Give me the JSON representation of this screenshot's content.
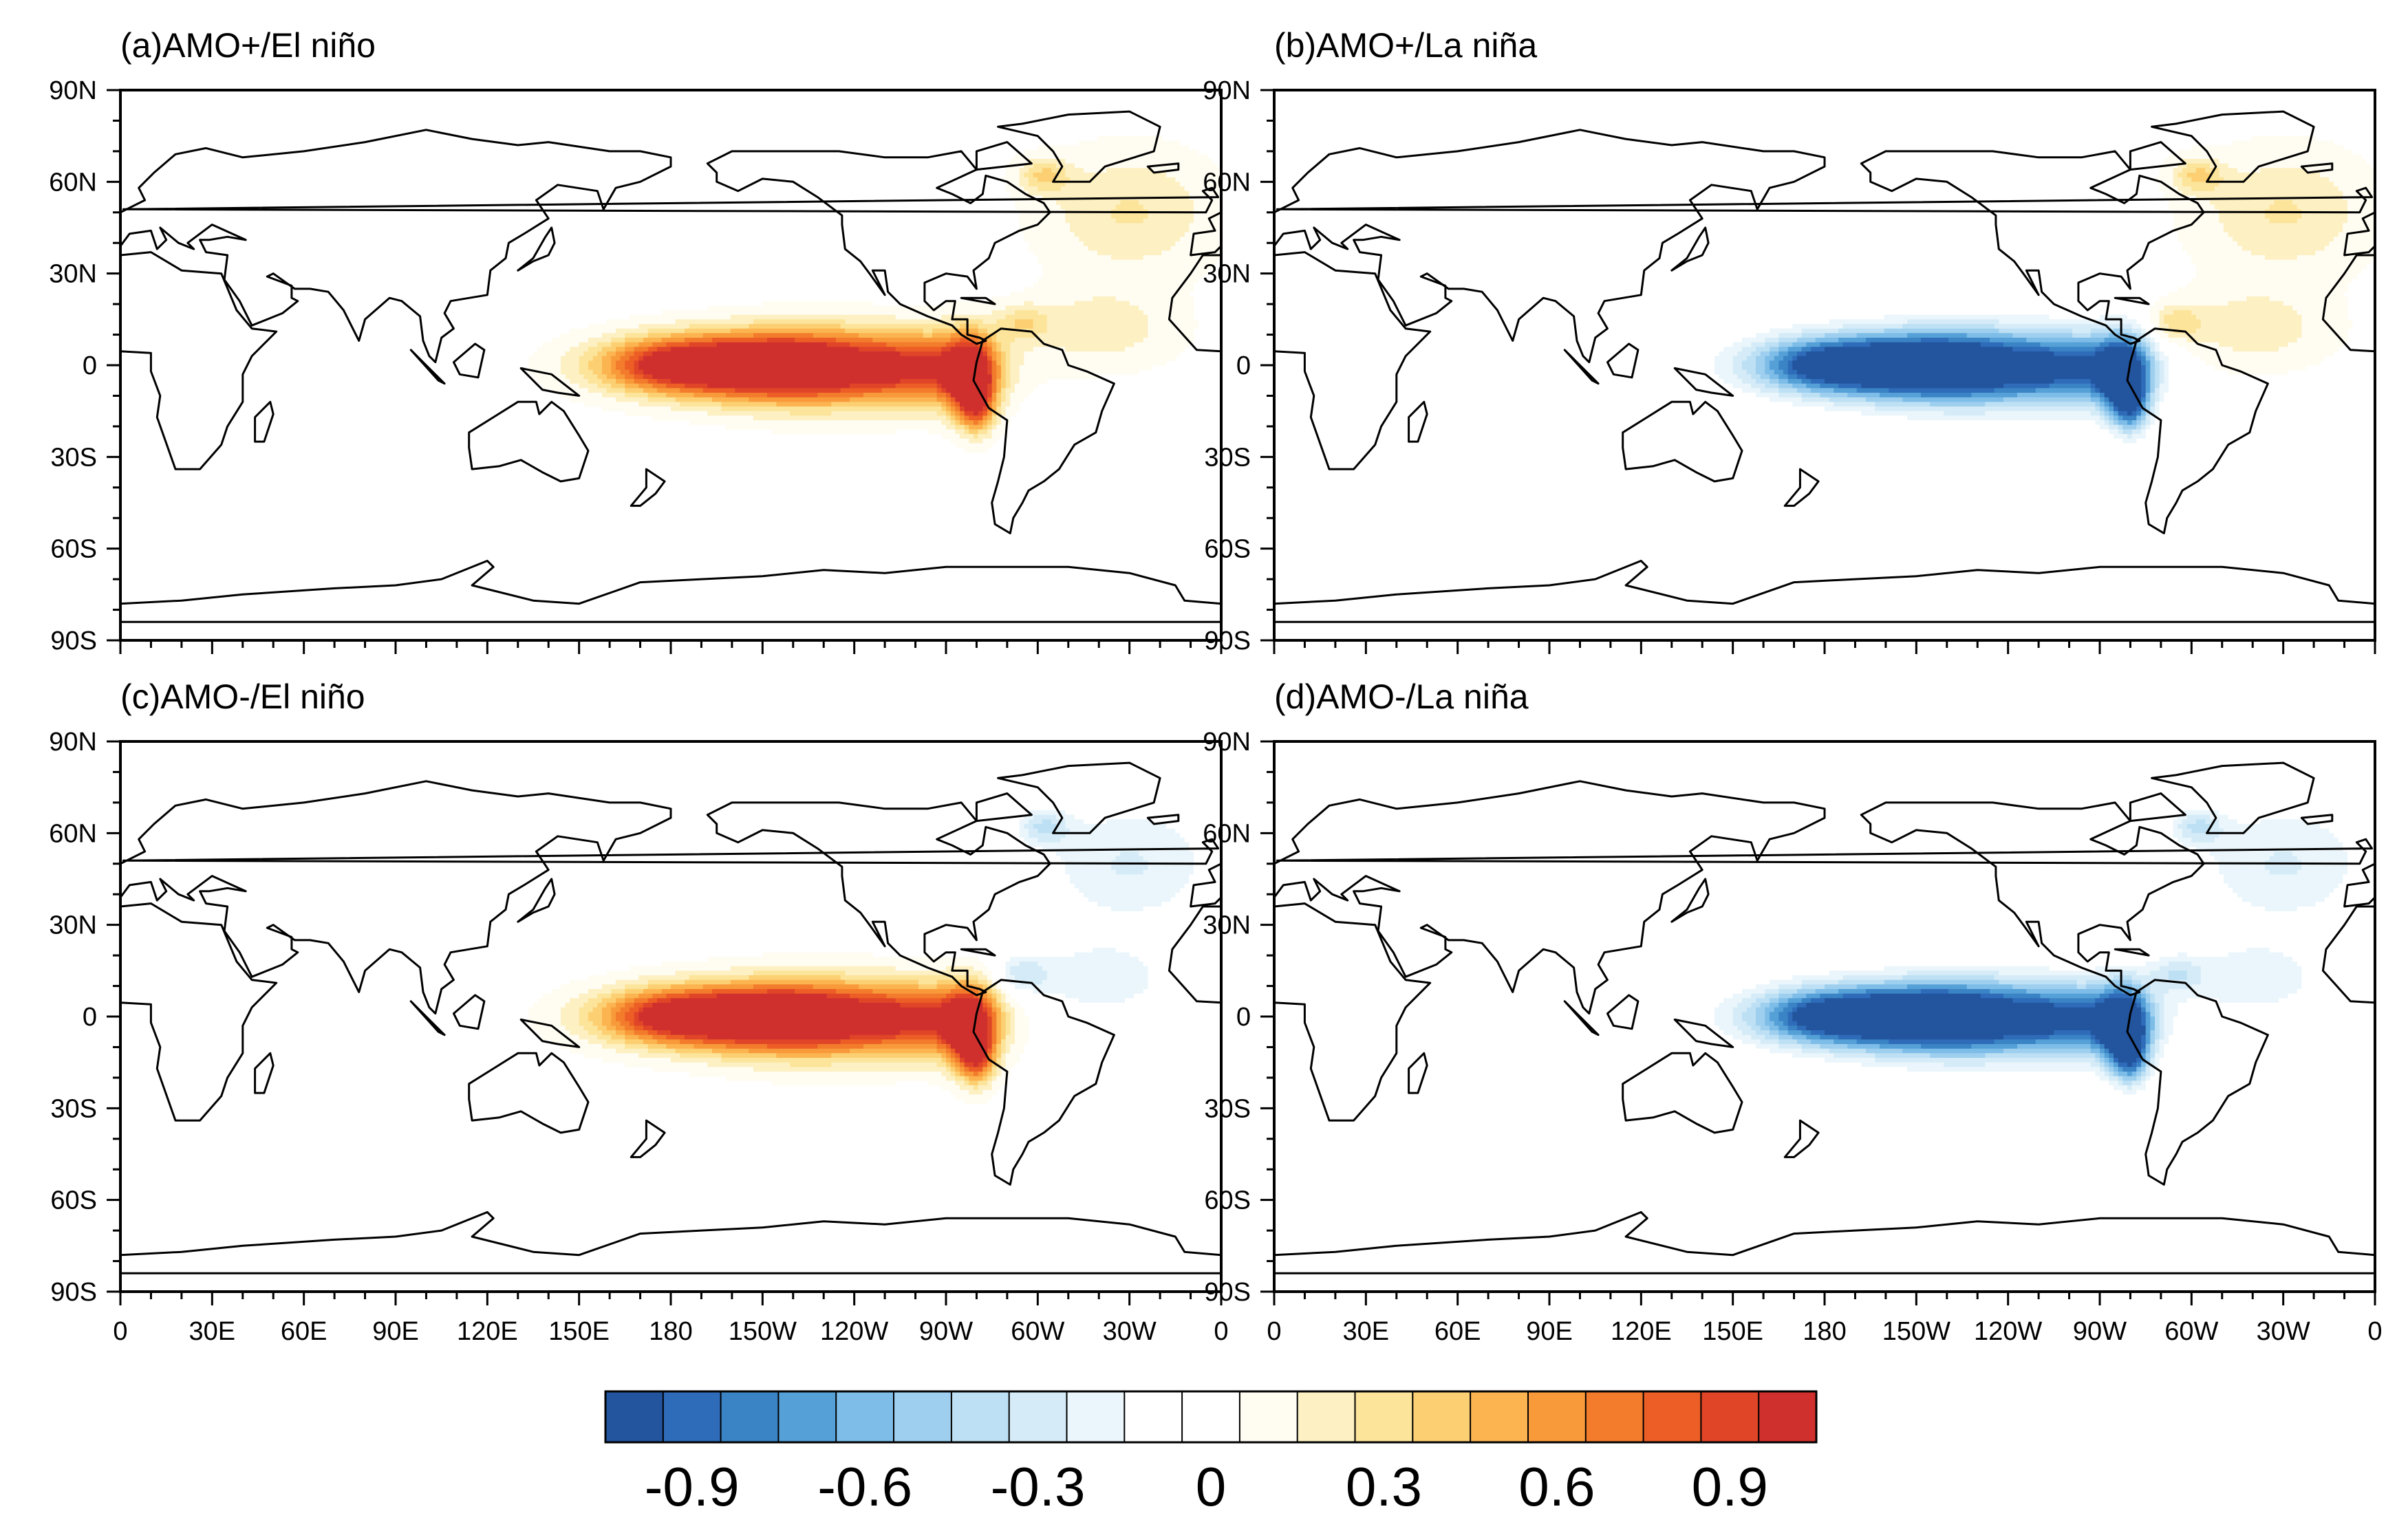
{
  "figure": {
    "panels": [
      {
        "id": "a",
        "title": "(a)AMO+/El niño",
        "enso": "El niño",
        "amo": "AMO+"
      },
      {
        "id": "b",
        "title": "(b)AMO+/La niña",
        "enso": "La niña",
        "amo": "AMO+"
      },
      {
        "id": "c",
        "title": "(c)AMO-/El niño",
        "enso": "El niño",
        "amo": "AMO-"
      },
      {
        "id": "d",
        "title": "(d)AMO-/La niña",
        "enso": "La niña",
        "amo": "AMO-"
      }
    ]
  },
  "chart_data": {
    "type": "heatmap",
    "description_kind": "global map, shaded anomaly composite",
    "xlabel": "",
    "ylabel": "",
    "lon_range": [
      0,
      360
    ],
    "lat_range": [
      -90,
      90
    ],
    "lat_ticks": [
      "90N",
      "60N",
      "30N",
      "0",
      "30S",
      "60S",
      "90S"
    ],
    "lat_values": [
      90,
      60,
      30,
      0,
      -30,
      -60,
      -90
    ],
    "lon_ticks": [
      "0",
      "30E",
      "60E",
      "90E",
      "120E",
      "150E",
      "180",
      "150W",
      "120W",
      "90W",
      "60W",
      "30W",
      "0"
    ],
    "lon_values": [
      0,
      30,
      60,
      90,
      120,
      150,
      180,
      210,
      240,
      270,
      300,
      330,
      360
    ],
    "colorbar": {
      "levels": [
        -1.05,
        -0.95,
        -0.85,
        -0.75,
        -0.65,
        -0.55,
        -0.45,
        -0.35,
        -0.25,
        -0.15,
        -0.05,
        0.05,
        0.15,
        0.25,
        0.35,
        0.45,
        0.55,
        0.65,
        0.75,
        0.85,
        0.95,
        1.05
      ],
      "colors": [
        "#23549e",
        "#2e6bb8",
        "#3a83c5",
        "#55a0d7",
        "#7dbde8",
        "#9ecfef",
        "#bde0f4",
        "#d5ecf8",
        "#eaf6fb",
        "#ffffff",
        "#ffffff",
        "#fffcf2",
        "#fdf0c2",
        "#fce49a",
        "#fcd072",
        "#fbb44f",
        "#f8993a",
        "#f37c2c",
        "#ec5e25",
        "#e04528",
        "#d0302d"
      ],
      "tick_labels": [
        "-0.9",
        "-0.6",
        "-0.3",
        "0",
        "0.3",
        "0.6",
        "0.9"
      ],
      "tick_values": [
        -0.9,
        -0.6,
        -0.3,
        0,
        0.3,
        0.6,
        0.9
      ]
    },
    "features": {
      "pacific_tongue": [
        {
          "lon": 205,
          "lat": 0,
          "amp": 1.0,
          "sx": 28,
          "sy": 7
        },
        {
          "lon": 230,
          "lat": -1,
          "amp": 0.75,
          "sx": 26,
          "sy": 9
        },
        {
          "lon": 178,
          "lat": 0,
          "amp": 0.5,
          "sx": 16,
          "sy": 6
        },
        {
          "lon": 265,
          "lat": -1,
          "amp": 0.55,
          "sx": 14,
          "sy": 8
        },
        {
          "lon": 278,
          "lat": -3,
          "amp": 1.0,
          "sx": 6,
          "sy": 9
        },
        {
          "lon": 280,
          "lat": -14,
          "amp": 0.55,
          "sx": 4,
          "sy": 6
        }
      ],
      "atlantic_pattern": [
        {
          "lon": 330,
          "lat": 50,
          "amp": 0.26,
          "sx": 20,
          "sy": 14
        },
        {
          "lon": 302,
          "lat": 62,
          "amp": 0.33,
          "sx": 6,
          "sy": 4
        },
        {
          "lon": 320,
          "lat": 12,
          "amp": 0.22,
          "sx": 18,
          "sy": 9
        },
        {
          "lon": 295,
          "lat": 14,
          "amp": 0.28,
          "sx": 6,
          "sy": 4
        }
      ]
    },
    "panels": [
      {
        "id": "a",
        "pacific_sign": 1,
        "atlantic_sign": 1
      },
      {
        "id": "b",
        "pacific_sign": -1,
        "atlantic_sign": 1
      },
      {
        "id": "c",
        "pacific_sign": 1,
        "atlantic_sign": -1
      },
      {
        "id": "d",
        "pacific_sign": -1,
        "atlantic_sign": -1
      }
    ],
    "coastlines": {
      "africa": [
        [
          -17,
          15
        ],
        [
          -8,
          5
        ],
        [
          10,
          4
        ],
        [
          10,
          -2
        ],
        [
          13,
          -10
        ],
        [
          12,
          -17
        ],
        [
          18,
          -34
        ],
        [
          26,
          -34
        ],
        [
          33,
          -26
        ],
        [
          35,
          -20
        ],
        [
          40,
          -12
        ],
        [
          40,
          -3
        ],
        [
          43,
          3
        ],
        [
          51,
          11
        ],
        [
          43,
          12
        ],
        [
          38,
          18
        ],
        [
          33,
          30
        ],
        [
          20,
          31
        ],
        [
          10,
          37
        ],
        [
          0,
          36
        ],
        [
          -6,
          36
        ],
        [
          -10,
          30
        ],
        [
          -16,
          22
        ]
      ],
      "europe_asia": [
        [
          -10,
          36
        ],
        [
          -9,
          43
        ],
        [
          -2,
          44
        ],
        [
          -4,
          48
        ],
        [
          2,
          51
        ],
        [
          8,
          54
        ],
        [
          6,
          58
        ],
        [
          11,
          63
        ],
        [
          18,
          69
        ],
        [
          28,
          71
        ],
        [
          40,
          68
        ],
        [
          60,
          70
        ],
        [
          80,
          73
        ],
        [
          100,
          77
        ],
        [
          115,
          74
        ],
        [
          130,
          72
        ],
        [
          140,
          73
        ],
        [
          160,
          70
        ],
        [
          170,
          70
        ],
        [
          180,
          68
        ],
        [
          180,
          65
        ],
        [
          170,
          60
        ],
        [
          162,
          58
        ],
        [
          158,
          51
        ],
        [
          156,
          57
        ],
        [
          143,
          59
        ],
        [
          136,
          54
        ],
        [
          140,
          48
        ],
        [
          132,
          43
        ],
        [
          127,
          40
        ],
        [
          126,
          35
        ],
        [
          121,
          31
        ],
        [
          120,
          23
        ],
        [
          108,
          21
        ],
        [
          106,
          17
        ],
        [
          109,
          12
        ],
        [
          105,
          9
        ],
        [
          103,
          1
        ],
        [
          101,
          3
        ],
        [
          99,
          8
        ],
        [
          98,
          16
        ],
        [
          92,
          21
        ],
        [
          88,
          22
        ],
        [
          80,
          15
        ],
        [
          78,
          8
        ],
        [
          73,
          18
        ],
        [
          68,
          24
        ],
        [
          62,
          25
        ],
        [
          57,
          25
        ],
        [
          50,
          30
        ],
        [
          48,
          29
        ],
        [
          56,
          26
        ],
        [
          56,
          22
        ],
        [
          58,
          21
        ],
        [
          53,
          17
        ],
        [
          43,
          13
        ],
        [
          39,
          21
        ],
        [
          34,
          28
        ],
        [
          35,
          36
        ],
        [
          28,
          37
        ],
        [
          26,
          41
        ],
        [
          29,
          41
        ],
        [
          35,
          42
        ],
        [
          41,
          41
        ],
        [
          30,
          46
        ],
        [
          22,
          40
        ],
        [
          24,
          38
        ],
        [
          19,
          40
        ],
        [
          13,
          45
        ],
        [
          15,
          41
        ],
        [
          12,
          38
        ],
        [
          10,
          44
        ],
        [
          3,
          43
        ],
        [
          0,
          39
        ],
        [
          -2,
          37
        ]
      ],
      "north_america": [
        [
          -168,
          66
        ],
        [
          -160,
          70
        ],
        [
          -140,
          70
        ],
        [
          -125,
          70
        ],
        [
          -110,
          68
        ],
        [
          -96,
          68
        ],
        [
          -85,
          70
        ],
        [
          -80,
          64
        ],
        [
          -93,
          58
        ],
        [
          -88,
          56
        ],
        [
          -82,
          53
        ],
        [
          -78,
          56
        ],
        [
          -77,
          62
        ],
        [
          -70,
          60
        ],
        [
          -64,
          56
        ],
        [
          -58,
          53
        ],
        [
          -56,
          50
        ],
        [
          -60,
          46
        ],
        [
          -66,
          44
        ],
        [
          -70,
          42
        ],
        [
          -74,
          40
        ],
        [
          -76,
          35
        ],
        [
          -81,
          31
        ],
        [
          -80,
          25
        ],
        [
          -83,
          29
        ],
        [
          -90,
          30
        ],
        [
          -97,
          27
        ],
        [
          -97,
          21
        ],
        [
          -94,
          18
        ],
        [
          -90,
          21
        ],
        [
          -87,
          21
        ],
        [
          -88,
          15
        ],
        [
          -83,
          15
        ],
        [
          -83,
          10
        ],
        [
          -79,
          9
        ],
        [
          -77,
          8
        ],
        [
          -80,
          7
        ],
        [
          -85,
          10
        ],
        [
          -88,
          13
        ],
        [
          -96,
          16
        ],
        [
          -105,
          20
        ],
        [
          -109,
          24
        ],
        [
          -110,
          31
        ],
        [
          -114,
          31
        ],
        [
          -110,
          23
        ],
        [
          -115,
          30
        ],
        [
          -118,
          34
        ],
        [
          -123,
          38
        ],
        [
          -124,
          46
        ],
        [
          -124,
          49
        ],
        [
          -132,
          55
        ],
        [
          -140,
          60
        ],
        [
          -150,
          61
        ],
        [
          -158,
          57
        ],
        [
          -165,
          60
        ],
        [
          -165,
          63
        ],
        [
          -168,
          66
        ]
      ],
      "south_america": [
        [
          -78,
          8
        ],
        [
          -72,
          12
        ],
        [
          -62,
          11
        ],
        [
          -58,
          7
        ],
        [
          -52,
          5
        ],
        [
          -50,
          0
        ],
        [
          -44,
          -2
        ],
        [
          -35,
          -6
        ],
        [
          -39,
          -15
        ],
        [
          -41,
          -22
        ],
        [
          -48,
          -26
        ],
        [
          -53,
          -34
        ],
        [
          -58,
          -38
        ],
        [
          -63,
          -41
        ],
        [
          -65,
          -45
        ],
        [
          -68,
          -50
        ],
        [
          -69,
          -55
        ],
        [
          -74,
          -52
        ],
        [
          -75,
          -45
        ],
        [
          -73,
          -38
        ],
        [
          -71,
          -30
        ],
        [
          -70,
          -18
        ],
        [
          -76,
          -14
        ],
        [
          -81,
          -5
        ],
        [
          -80,
          1
        ],
        [
          -78,
          8
        ]
      ],
      "australia": [
        [
          114,
          -22
        ],
        [
          122,
          -17
        ],
        [
          130,
          -12
        ],
        [
          136,
          -12
        ],
        [
          137,
          -16
        ],
        [
          141,
          -12
        ],
        [
          145,
          -15
        ],
        [
          150,
          -23
        ],
        [
          153,
          -28
        ],
        [
          150,
          -37
        ],
        [
          144,
          -38
        ],
        [
          138,
          -35
        ],
        [
          131,
          -31
        ],
        [
          124,
          -33
        ],
        [
          115,
          -34
        ],
        [
          114,
          -27
        ]
      ],
      "greenland": [
        [
          -55,
          60
        ],
        [
          -43,
          60
        ],
        [
          -38,
          65
        ],
        [
          -22,
          70
        ],
        [
          -20,
          78
        ],
        [
          -30,
          83
        ],
        [
          -50,
          82
        ],
        [
          -65,
          79
        ],
        [
          -73,
          78
        ],
        [
          -60,
          75
        ],
        [
          -55,
          70
        ],
        [
          -52,
          65
        ]
      ],
      "antarctica": [
        [
          -180,
          -84
        ],
        [
          -180,
          -78
        ],
        [
          -160,
          -77
        ],
        [
          -140,
          -75
        ],
        [
          -110,
          -73
        ],
        [
          -90,
          -72
        ],
        [
          -75,
          -70
        ],
        [
          -60,
          -64
        ],
        [
          -58,
          -66
        ],
        [
          -65,
          -72
        ],
        [
          -45,
          -77
        ],
        [
          -30,
          -78
        ],
        [
          -10,
          -71
        ],
        [
          10,
          -70
        ],
        [
          30,
          -69
        ],
        [
          50,
          -67
        ],
        [
          70,
          -68
        ],
        [
          90,
          -66
        ],
        [
          110,
          -66
        ],
        [
          130,
          -66
        ],
        [
          150,
          -68
        ],
        [
          165,
          -72
        ],
        [
          168,
          -77
        ],
        [
          180,
          -78
        ],
        [
          180,
          -84
        ]
      ],
      "madagascar": [
        [
          44,
          -25
        ],
        [
          47,
          -25
        ],
        [
          50,
          -16
        ],
        [
          49,
          -12
        ],
        [
          44,
          -17
        ]
      ],
      "britain": [
        [
          -5,
          50
        ],
        [
          1,
          51
        ],
        [
          -1,
          55
        ],
        [
          -3,
          58
        ],
        [
          -6,
          57
        ],
        [
          -3,
          54
        ]
      ],
      "japan": [
        [
          130,
          31
        ],
        [
          135,
          34
        ],
        [
          140,
          36
        ],
        [
          142,
          40
        ],
        [
          141,
          45
        ],
        [
          139,
          42
        ],
        [
          135,
          35
        ]
      ],
      "borneo": [
        [
          109,
          1
        ],
        [
          116,
          7
        ],
        [
          119,
          5
        ],
        [
          117,
          -4
        ],
        [
          111,
          -3
        ]
      ],
      "sumatra": [
        [
          95,
          5
        ],
        [
          104,
          -5
        ],
        [
          106,
          -6
        ],
        [
          100,
          0
        ]
      ],
      "new_guinea": [
        [
          131,
          -1
        ],
        [
          141,
          -3
        ],
        [
          150,
          -10
        ],
        [
          143,
          -9
        ],
        [
          138,
          -8
        ]
      ],
      "new_zealand": [
        [
          172,
          -34
        ],
        [
          178,
          -38
        ],
        [
          175,
          -42
        ],
        [
          170,
          -46
        ],
        [
          167,
          -46
        ],
        [
          172,
          -40
        ]
      ],
      "iceland": [
        [
          -24,
          65
        ],
        [
          -14,
          66
        ],
        [
          -14,
          64
        ],
        [
          -22,
          63
        ]
      ],
      "baffin": [
        [
          -80,
          64
        ],
        [
          -62,
          66
        ],
        [
          -70,
          73
        ],
        [
          -80,
          70
        ]
      ],
      "cuba": [
        [
          -85,
          22
        ],
        [
          -74,
          20
        ],
        [
          -77,
          22
        ]
      ]
    }
  }
}
